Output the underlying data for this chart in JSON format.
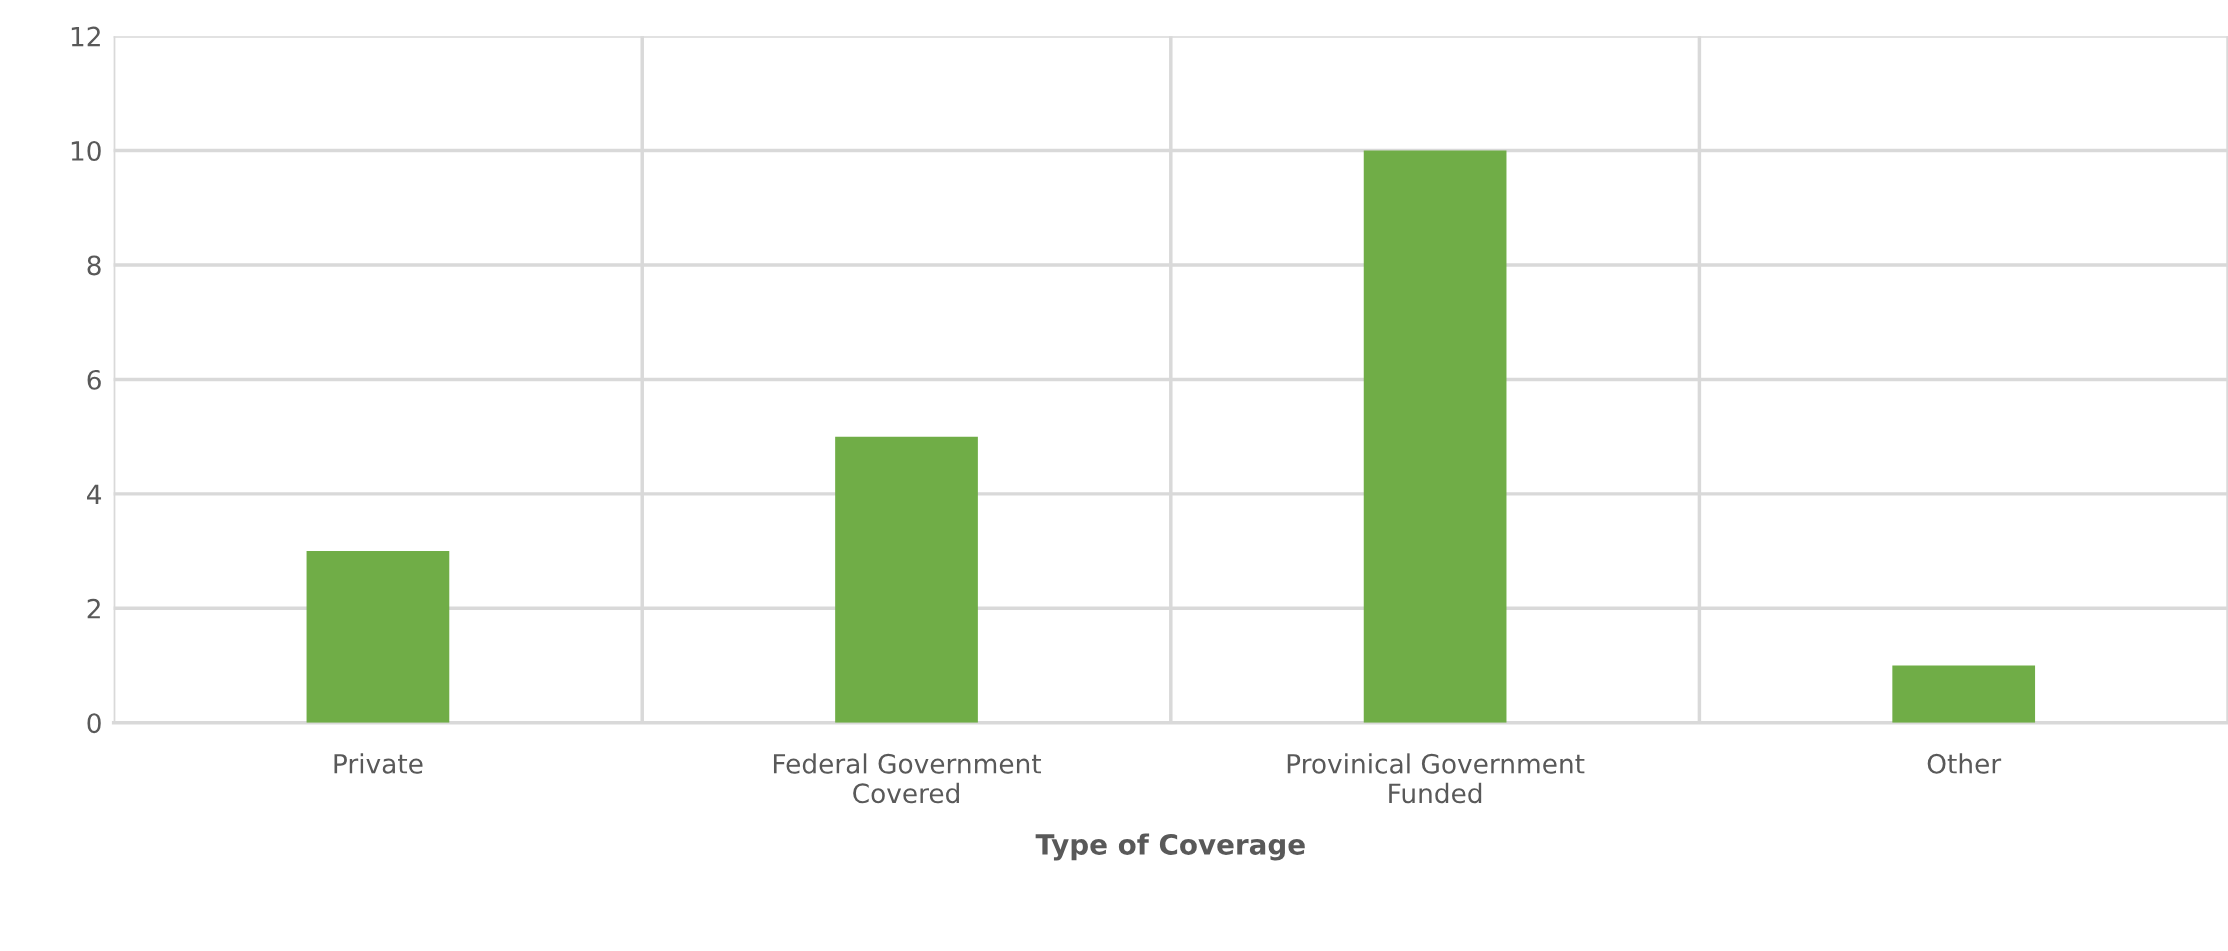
{
  "chart_data": {
    "type": "bar",
    "xlabel": "Type of Coverage",
    "categories": [
      "Private",
      "Federal Government\nCovered",
      "Provinical Government\nFunded",
      "Other"
    ],
    "values": [
      3,
      5,
      10,
      1
    ],
    "color": "#70ad47",
    "ylim": [
      0,
      12
    ],
    "yticks": [
      0,
      2,
      4,
      6,
      8,
      10,
      12
    ],
    "grid": true,
    "legend": false
  }
}
